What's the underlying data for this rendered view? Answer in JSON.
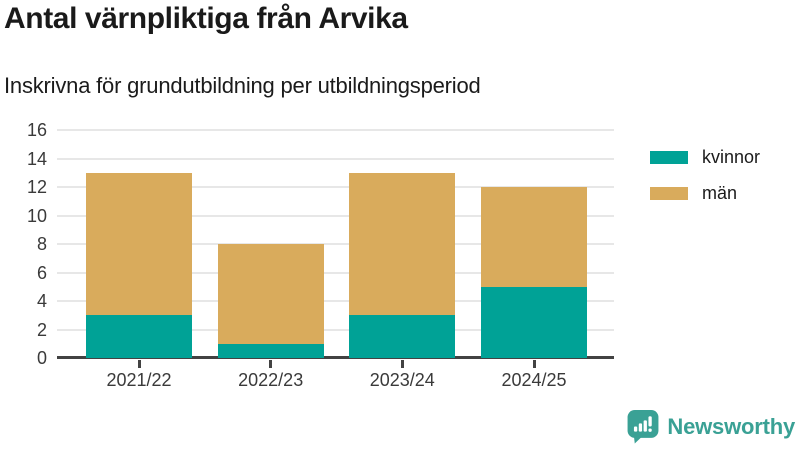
{
  "header": {
    "title": "Antal värnpliktiga från Arvika",
    "subtitle": "Inskrivna för grundutbildning per utbildningsperiod"
  },
  "chart_data": {
    "type": "bar",
    "stacked": true,
    "title": "Antal värnpliktiga från Arvika",
    "subtitle": "Inskrivna för grundutbildning per utbildningsperiod",
    "categories": [
      "2021/22",
      "2022/23",
      "2023/24",
      "2024/25"
    ],
    "series": [
      {
        "name": "kvinnor",
        "color": "#00a296",
        "values": [
          3,
          1,
          3,
          5
        ]
      },
      {
        "name": "män",
        "color": "#d9ab5c",
        "values": [
          10,
          7,
          10,
          7
        ]
      }
    ],
    "stack_totals": [
      13,
      8,
      13,
      12
    ],
    "xlabel": "",
    "ylabel": "",
    "ylim": [
      0,
      16
    ],
    "yticks": [
      0,
      2,
      4,
      6,
      8,
      10,
      12,
      14,
      16
    ],
    "grid": "horizontal",
    "legend_position": "right",
    "legend_order": [
      "kvinnor",
      "män"
    ]
  },
  "branding": {
    "logo_text": "Newsworthy",
    "logo_icon": "newsworthy-speech-bubble-bar-chart-icon",
    "brand_color": "#3aa195"
  },
  "colors": {
    "kvinnor": "#00a296",
    "man": "#d9ab5c",
    "gridline": "#e7e7e7",
    "axis": "#424242",
    "text_dark": "#1a1a1a",
    "tick_text": "#3a3a3a",
    "background": "#ffffff"
  }
}
